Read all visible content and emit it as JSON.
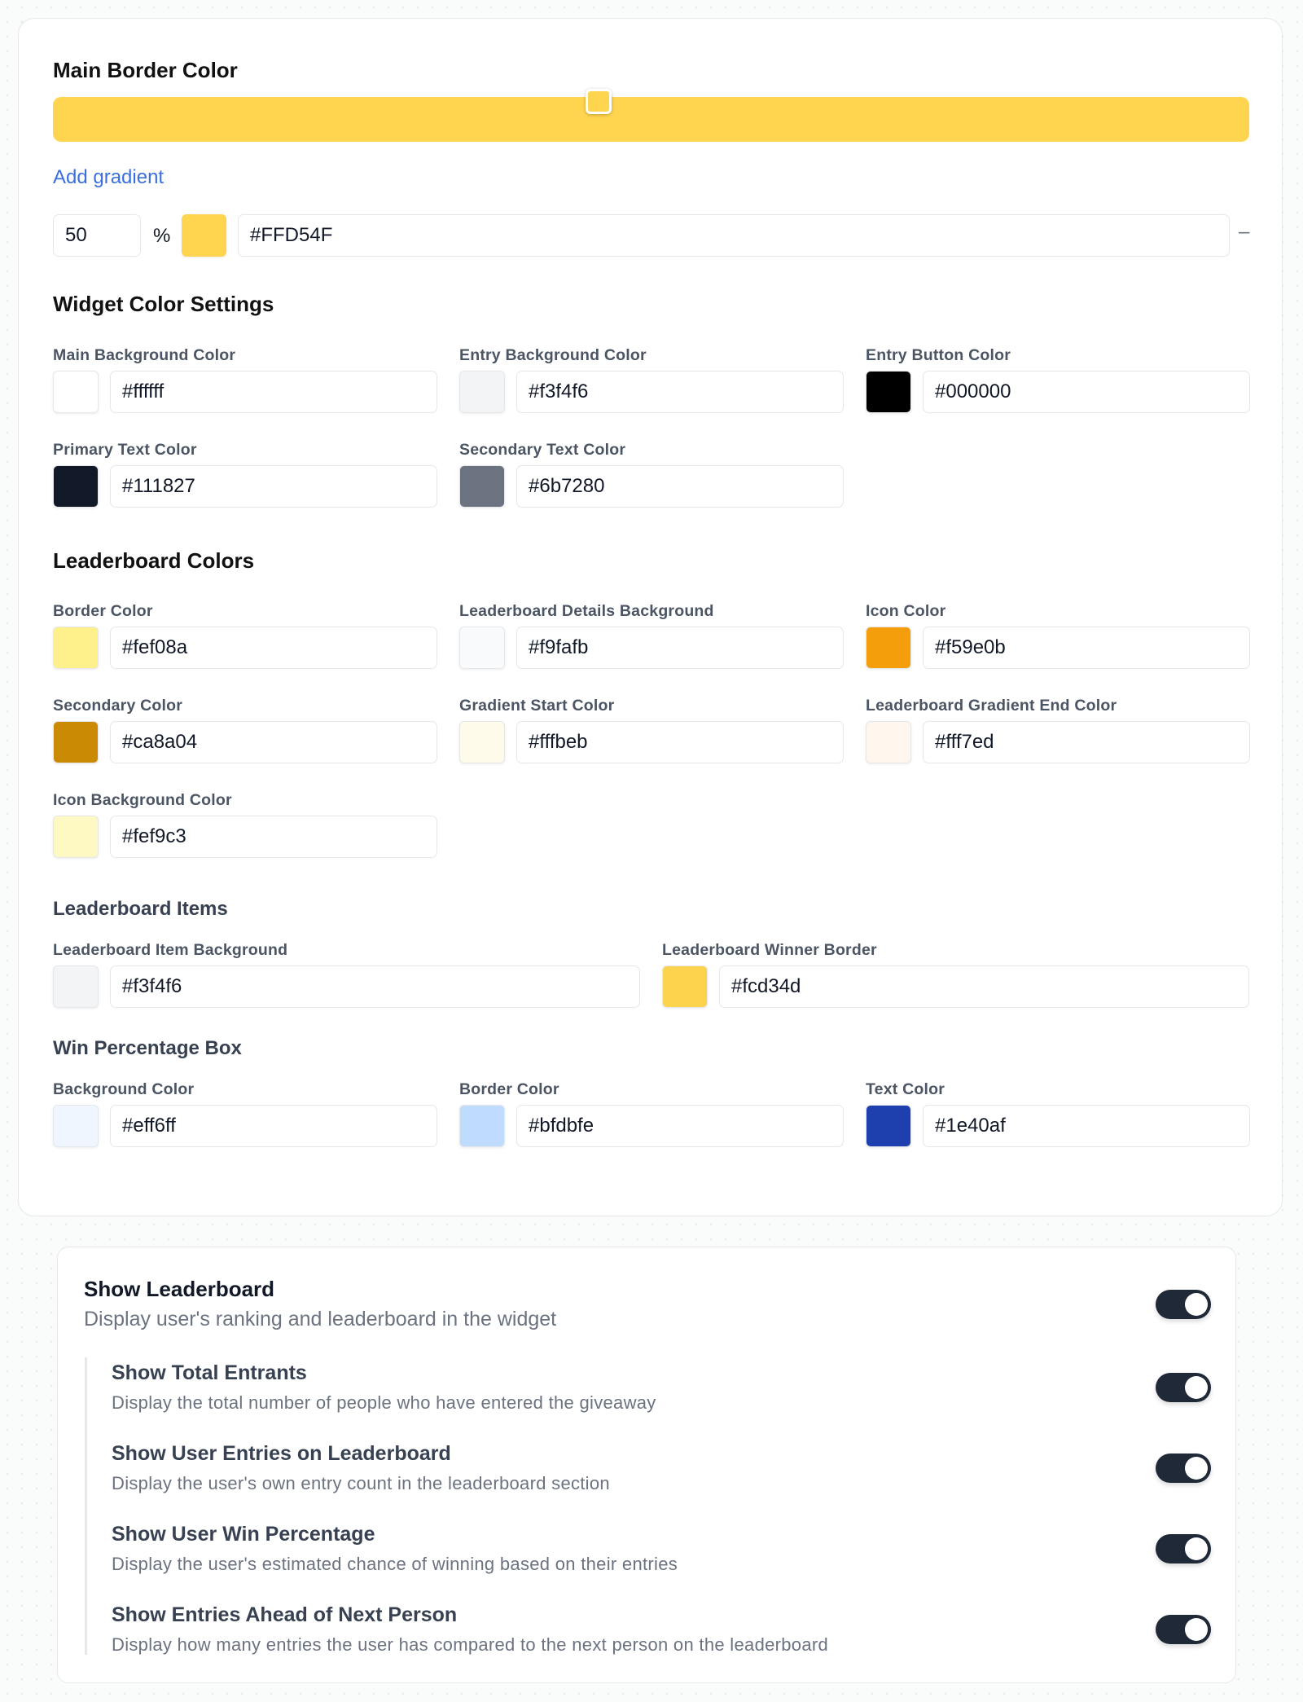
{
  "border": {
    "title": "Main Border Color",
    "gradient_color": "#FFD54F",
    "add_gradient_label": "Add gradient",
    "stop_percent": "50",
    "percent_sign": "%",
    "stop_hex": "#FFD54F",
    "remove_icon": "minus-icon",
    "remove_label": "–"
  },
  "widget": {
    "title": "Widget Color Settings",
    "fields": [
      {
        "label": "Main Background Color",
        "value": "#ffffff"
      },
      {
        "label": "Entry Background Color",
        "value": "#f3f4f6"
      },
      {
        "label": "Entry Button Color",
        "value": "#000000"
      },
      {
        "label": "Primary Text Color",
        "value": "#111827"
      },
      {
        "label": "Secondary Text Color",
        "value": "#6b7280"
      }
    ]
  },
  "leaderboard": {
    "title": "Leaderboard Colors",
    "fields": [
      {
        "label": "Border Color",
        "value": "#fef08a"
      },
      {
        "label": "Leaderboard Details Background",
        "value": "#f9fafb"
      },
      {
        "label": "Icon Color",
        "value": "#f59e0b"
      },
      {
        "label": "Secondary Color",
        "value": "#ca8a04"
      },
      {
        "label": "Gradient Start Color",
        "value": "#fffbeb"
      },
      {
        "label": "Leaderboard Gradient End Color",
        "value": "#fff7ed"
      },
      {
        "label": "Icon Background Color",
        "value": "#fef9c3"
      }
    ]
  },
  "items": {
    "title": "Leaderboard Items",
    "fields": [
      {
        "label": "Leaderboard Item Background",
        "value": "#f3f4f6"
      },
      {
        "label": "Leaderboard Winner Border",
        "value": "#fcd34d"
      }
    ]
  },
  "win": {
    "title": "Win Percentage Box",
    "fields": [
      {
        "label": "Background Color",
        "value": "#eff6ff"
      },
      {
        "label": "Border Color",
        "value": "#bfdbfe"
      },
      {
        "label": "Text Color",
        "value": "#1e40af"
      }
    ]
  },
  "toggles": {
    "main": {
      "title": "Show Leaderboard",
      "desc": "Display user's ranking and leaderboard in the widget",
      "on": true
    },
    "subs": [
      {
        "title": "Show Total Entrants",
        "desc": "Display the total number of people who have entered the giveaway",
        "on": true
      },
      {
        "title": "Show User Entries on Leaderboard",
        "desc": "Display the user's own entry count in the leaderboard section",
        "on": true
      },
      {
        "title": "Show User Win Percentage",
        "desc": "Display the user's estimated chance of winning based on their entries",
        "on": true
      },
      {
        "title": "Show Entries Ahead of Next Person",
        "desc": "Display how many entries the user has compared to the next person on the leaderboard",
        "on": true
      }
    ]
  }
}
